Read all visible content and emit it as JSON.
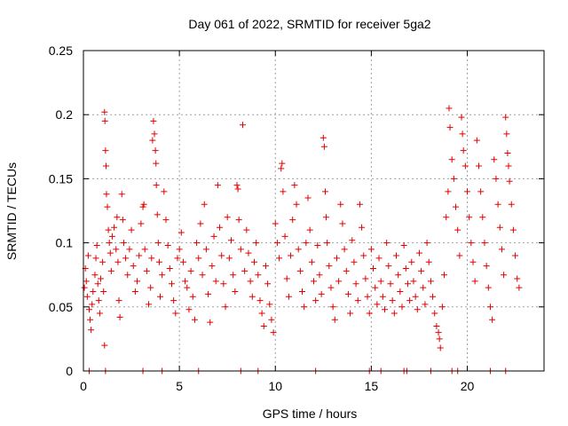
{
  "chart_data": {
    "type": "scatter",
    "title": "Day 061 of 2022, SRMTID for receiver 5ga2",
    "xlabel": "GPS time / hours",
    "ylabel": "SRMTID / TECUs",
    "xlim": [
      0,
      24
    ],
    "ylim": [
      0,
      0.25
    ],
    "x_ticks": [
      0,
      5,
      10,
      15,
      20
    ],
    "x_tick_labels": [
      "0",
      "5",
      "10",
      "15",
      "20"
    ],
    "y_ticks": [
      0,
      0.05,
      0.1,
      0.15,
      0.2,
      0.25
    ],
    "y_tick_labels": [
      "0",
      "0.05",
      "0.1",
      "0.15",
      "0.2",
      "0.25"
    ],
    "grid": true,
    "marker": "plus",
    "color": "#e00000",
    "series": [
      {
        "name": "SRMTID",
        "points": [
          [
            0.05,
            0.065
          ],
          [
            0.1,
            0.08
          ],
          [
            0.15,
            0.07
          ],
          [
            0.2,
            0.058
          ],
          [
            0.25,
            0.09
          ],
          [
            0.3,
            0.048
          ],
          [
            0.35,
            0.04
          ],
          [
            0.4,
            0.032
          ],
          [
            0.45,
            0.052
          ],
          [
            0.5,
            0.062
          ],
          [
            0.6,
            0.075
          ],
          [
            0.65,
            0.088
          ],
          [
            0.7,
            0.098
          ],
          [
            0.75,
            0.068
          ],
          [
            0.8,
            0.055
          ],
          [
            0.85,
            0.045
          ],
          [
            0.9,
            0.072
          ],
          [
            1.0,
            0.085
          ],
          [
            1.05,
            0.062
          ],
          [
            1.1,
            0.202
          ],
          [
            1.12,
            0.195
          ],
          [
            1.15,
            0.172
          ],
          [
            1.18,
            0.16
          ],
          [
            1.2,
            0.138
          ],
          [
            1.25,
            0.128
          ],
          [
            1.3,
            0.11
          ],
          [
            1.35,
            0.1
          ],
          [
            1.4,
            0.092
          ],
          [
            1.1,
            0.02
          ],
          [
            1.45,
            0.078
          ],
          [
            1.5,
            0.105
          ],
          [
            1.6,
            0.112
          ],
          [
            1.7,
            0.095
          ],
          [
            1.75,
            0.12
          ],
          [
            1.8,
            0.085
          ],
          [
            1.85,
            0.055
          ],
          [
            1.9,
            0.042
          ],
          [
            2.0,
            0.138
          ],
          [
            2.05,
            0.118
          ],
          [
            2.1,
            0.1
          ],
          [
            2.2,
            0.088
          ],
          [
            2.3,
            0.075
          ],
          [
            2.4,
            0.095
          ],
          [
            2.5,
            0.11
          ],
          [
            2.6,
            0.082
          ],
          [
            2.7,
            0.062
          ],
          [
            2.8,
            0.07
          ],
          [
            2.9,
            0.09
          ],
          [
            3.0,
            0.115
          ],
          [
            3.1,
            0.128
          ],
          [
            3.15,
            0.13
          ],
          [
            3.2,
            0.095
          ],
          [
            3.3,
            0.078
          ],
          [
            3.4,
            0.052
          ],
          [
            3.5,
            0.065
          ],
          [
            3.55,
            0.088
          ],
          [
            3.6,
            0.18
          ],
          [
            3.65,
            0.195
          ],
          [
            3.7,
            0.185
          ],
          [
            3.75,
            0.172
          ],
          [
            3.78,
            0.162
          ],
          [
            3.8,
            0.145
          ],
          [
            3.85,
            0.122
          ],
          [
            3.9,
            0.1
          ],
          [
            3.95,
            0.085
          ],
          [
            4.0,
            0.058
          ],
          [
            4.1,
            0.075
          ],
          [
            4.2,
            0.14
          ],
          [
            4.3,
            0.118
          ],
          [
            4.4,
            0.098
          ],
          [
            4.5,
            0.08
          ],
          [
            4.6,
            0.068
          ],
          [
            4.7,
            0.055
          ],
          [
            4.8,
            0.045
          ],
          [
            4.9,
            0.088
          ],
          [
            5.0,
            0.095
          ],
          [
            5.1,
            0.108
          ],
          [
            5.2,
            0.085
          ],
          [
            5.3,
            0.07
          ],
          [
            5.4,
            0.065
          ],
          [
            5.5,
            0.048
          ],
          [
            5.6,
            0.078
          ],
          [
            5.7,
            0.058
          ],
          [
            5.8,
            0.04
          ],
          [
            5.9,
            0.1
          ],
          [
            6.0,
            0.088
          ],
          [
            6.1,
            0.115
          ],
          [
            6.2,
            0.075
          ],
          [
            6.3,
            0.13
          ],
          [
            6.4,
            0.095
          ],
          [
            6.5,
            0.06
          ],
          [
            6.6,
            0.038
          ],
          [
            6.7,
            0.082
          ],
          [
            6.8,
            0.105
          ],
          [
            6.9,
            0.07
          ],
          [
            7.0,
            0.145
          ],
          [
            7.1,
            0.112
          ],
          [
            7.2,
            0.09
          ],
          [
            7.3,
            0.068
          ],
          [
            7.4,
            0.05
          ],
          [
            7.5,
            0.12
          ],
          [
            7.6,
            0.088
          ],
          [
            7.7,
            0.102
          ],
          [
            7.8,
            0.075
          ],
          [
            7.9,
            0.062
          ],
          [
            8.0,
            0.145
          ],
          [
            8.05,
            0.142
          ],
          [
            8.1,
            0.118
          ],
          [
            8.2,
            0.095
          ],
          [
            8.3,
            0.192
          ],
          [
            8.4,
            0.078
          ],
          [
            8.5,
            0.11
          ],
          [
            8.6,
            0.092
          ],
          [
            8.7,
            0.07
          ],
          [
            8.8,
            0.058
          ],
          [
            8.9,
            0.085
          ],
          [
            9.0,
            0.1
          ],
          [
            9.1,
            0.075
          ],
          [
            9.2,
            0.055
          ],
          [
            9.3,
            0.045
          ],
          [
            9.4,
            0.035
          ],
          [
            9.5,
            0.082
          ],
          [
            9.6,
            0.068
          ],
          [
            9.7,
            0.052
          ],
          [
            9.8,
            0.04
          ],
          [
            9.9,
            0.03
          ],
          [
            10.0,
            0.115
          ],
          [
            10.1,
            0.1
          ],
          [
            10.2,
            0.088
          ],
          [
            10.3,
            0.158
          ],
          [
            10.35,
            0.162
          ],
          [
            10.4,
            0.14
          ],
          [
            10.5,
            0.105
          ],
          [
            10.6,
            0.072
          ],
          [
            10.7,
            0.058
          ],
          [
            10.8,
            0.09
          ],
          [
            10.9,
            0.118
          ],
          [
            11.0,
            0.145
          ],
          [
            11.1,
            0.13
          ],
          [
            11.2,
            0.095
          ],
          [
            11.3,
            0.078
          ],
          [
            11.4,
            0.062
          ],
          [
            11.5,
            0.05
          ],
          [
            11.6,
            0.1
          ],
          [
            11.7,
            0.135
          ],
          [
            11.8,
            0.11
          ],
          [
            11.9,
            0.085
          ],
          [
            12.0,
            0.07
          ],
          [
            12.1,
            0.055
          ],
          [
            12.2,
            0.098
          ],
          [
            12.3,
            0.075
          ],
          [
            12.4,
            0.06
          ],
          [
            12.5,
            0.182
          ],
          [
            12.55,
            0.175
          ],
          [
            12.6,
            0.14
          ],
          [
            12.65,
            0.12
          ],
          [
            12.7,
            0.1
          ],
          [
            12.8,
            0.082
          ],
          [
            12.9,
            0.065
          ],
          [
            13.0,
            0.05
          ],
          [
            13.1,
            0.04
          ],
          [
            13.2,
            0.088
          ],
          [
            13.3,
            0.07
          ],
          [
            13.4,
            0.13
          ],
          [
            13.5,
            0.115
          ],
          [
            13.6,
            0.095
          ],
          [
            13.7,
            0.078
          ],
          [
            13.8,
            0.06
          ],
          [
            13.9,
            0.045
          ],
          [
            14.0,
            0.102
          ],
          [
            14.1,
            0.085
          ],
          [
            14.2,
            0.068
          ],
          [
            14.3,
            0.055
          ],
          [
            14.4,
            0.13
          ],
          [
            14.5,
            0.112
          ],
          [
            14.6,
            0.09
          ],
          [
            14.7,
            0.072
          ],
          [
            14.8,
            0.058
          ],
          [
            14.9,
            0.045
          ],
          [
            15.0,
            0.095
          ],
          [
            15.1,
            0.08
          ],
          [
            15.2,
            0.065
          ],
          [
            15.3,
            0.052
          ],
          [
            15.4,
            0.088
          ],
          [
            15.5,
            0.07
          ],
          [
            15.6,
            0.058
          ],
          [
            15.7,
            0.048
          ],
          [
            15.8,
            0.1
          ],
          [
            15.9,
            0.082
          ],
          [
            16.0,
            0.068
          ],
          [
            16.1,
            0.055
          ],
          [
            16.2,
            0.045
          ],
          [
            16.3,
            0.09
          ],
          [
            16.4,
            0.075
          ],
          [
            16.5,
            0.062
          ],
          [
            16.6,
            0.05
          ],
          [
            16.7,
            0.098
          ],
          [
            16.8,
            0.08
          ],
          [
            16.9,
            0.068
          ],
          [
            17.0,
            0.055
          ],
          [
            17.1,
            0.085
          ],
          [
            17.2,
            0.07
          ],
          [
            17.3,
            0.058
          ],
          [
            17.4,
            0.048
          ],
          [
            17.5,
            0.092
          ],
          [
            17.6,
            0.078
          ],
          [
            17.7,
            0.065
          ],
          [
            17.8,
            0.052
          ],
          [
            17.9,
            0.1
          ],
          [
            18.0,
            0.085
          ],
          [
            18.1,
            0.07
          ],
          [
            18.2,
            0.058
          ],
          [
            18.3,
            0.045
          ],
          [
            18.4,
            0.035
          ],
          [
            18.5,
            0.03
          ],
          [
            18.55,
            0.025
          ],
          [
            18.6,
            0.018
          ],
          [
            18.7,
            0.05
          ],
          [
            18.8,
            0.075
          ],
          [
            18.9,
            0.12
          ],
          [
            19.0,
            0.14
          ],
          [
            19.05,
            0.205
          ],
          [
            19.1,
            0.19
          ],
          [
            19.2,
            0.165
          ],
          [
            19.3,
            0.15
          ],
          [
            19.4,
            0.128
          ],
          [
            19.5,
            0.11
          ],
          [
            19.6,
            0.09
          ],
          [
            19.7,
            0.198
          ],
          [
            19.75,
            0.185
          ],
          [
            19.8,
            0.172
          ],
          [
            19.9,
            0.16
          ],
          [
            20.0,
            0.14
          ],
          [
            20.1,
            0.12
          ],
          [
            20.2,
            0.1
          ],
          [
            20.3,
            0.085
          ],
          [
            20.4,
            0.07
          ],
          [
            20.5,
            0.18
          ],
          [
            20.6,
            0.16
          ],
          [
            20.7,
            0.14
          ],
          [
            20.8,
            0.12
          ],
          [
            20.9,
            0.1
          ],
          [
            21.0,
            0.082
          ],
          [
            21.1,
            0.065
          ],
          [
            21.2,
            0.05
          ],
          [
            21.3,
            0.04
          ],
          [
            21.4,
            0.165
          ],
          [
            21.5,
            0.15
          ],
          [
            21.6,
            0.13
          ],
          [
            21.7,
            0.112
          ],
          [
            21.8,
            0.095
          ],
          [
            21.9,
            0.075
          ],
          [
            22.0,
            0.198
          ],
          [
            22.05,
            0.185
          ],
          [
            22.1,
            0.17
          ],
          [
            22.15,
            0.16
          ],
          [
            22.2,
            0.148
          ],
          [
            22.3,
            0.13
          ],
          [
            22.4,
            0.11
          ],
          [
            22.5,
            0.09
          ],
          [
            22.6,
            0.072
          ],
          [
            22.7,
            0.065
          ],
          [
            0.3,
            0.0
          ],
          [
            1.15,
            0.0
          ],
          [
            3.1,
            0.0
          ],
          [
            4.1,
            0.0
          ],
          [
            6.0,
            0.0
          ],
          [
            8.2,
            0.0
          ],
          [
            9.1,
            0.0
          ],
          [
            12.1,
            0.0
          ],
          [
            14.9,
            0.0
          ],
          [
            15.5,
            0.0
          ],
          [
            16.7,
            0.0
          ],
          [
            16.85,
            0.0
          ],
          [
            18.1,
            0.0
          ],
          [
            19.2,
            0.0
          ],
          [
            19.5,
            0.0
          ],
          [
            21.2,
            0.0
          ],
          [
            22.0,
            0.0
          ]
        ]
      }
    ]
  }
}
